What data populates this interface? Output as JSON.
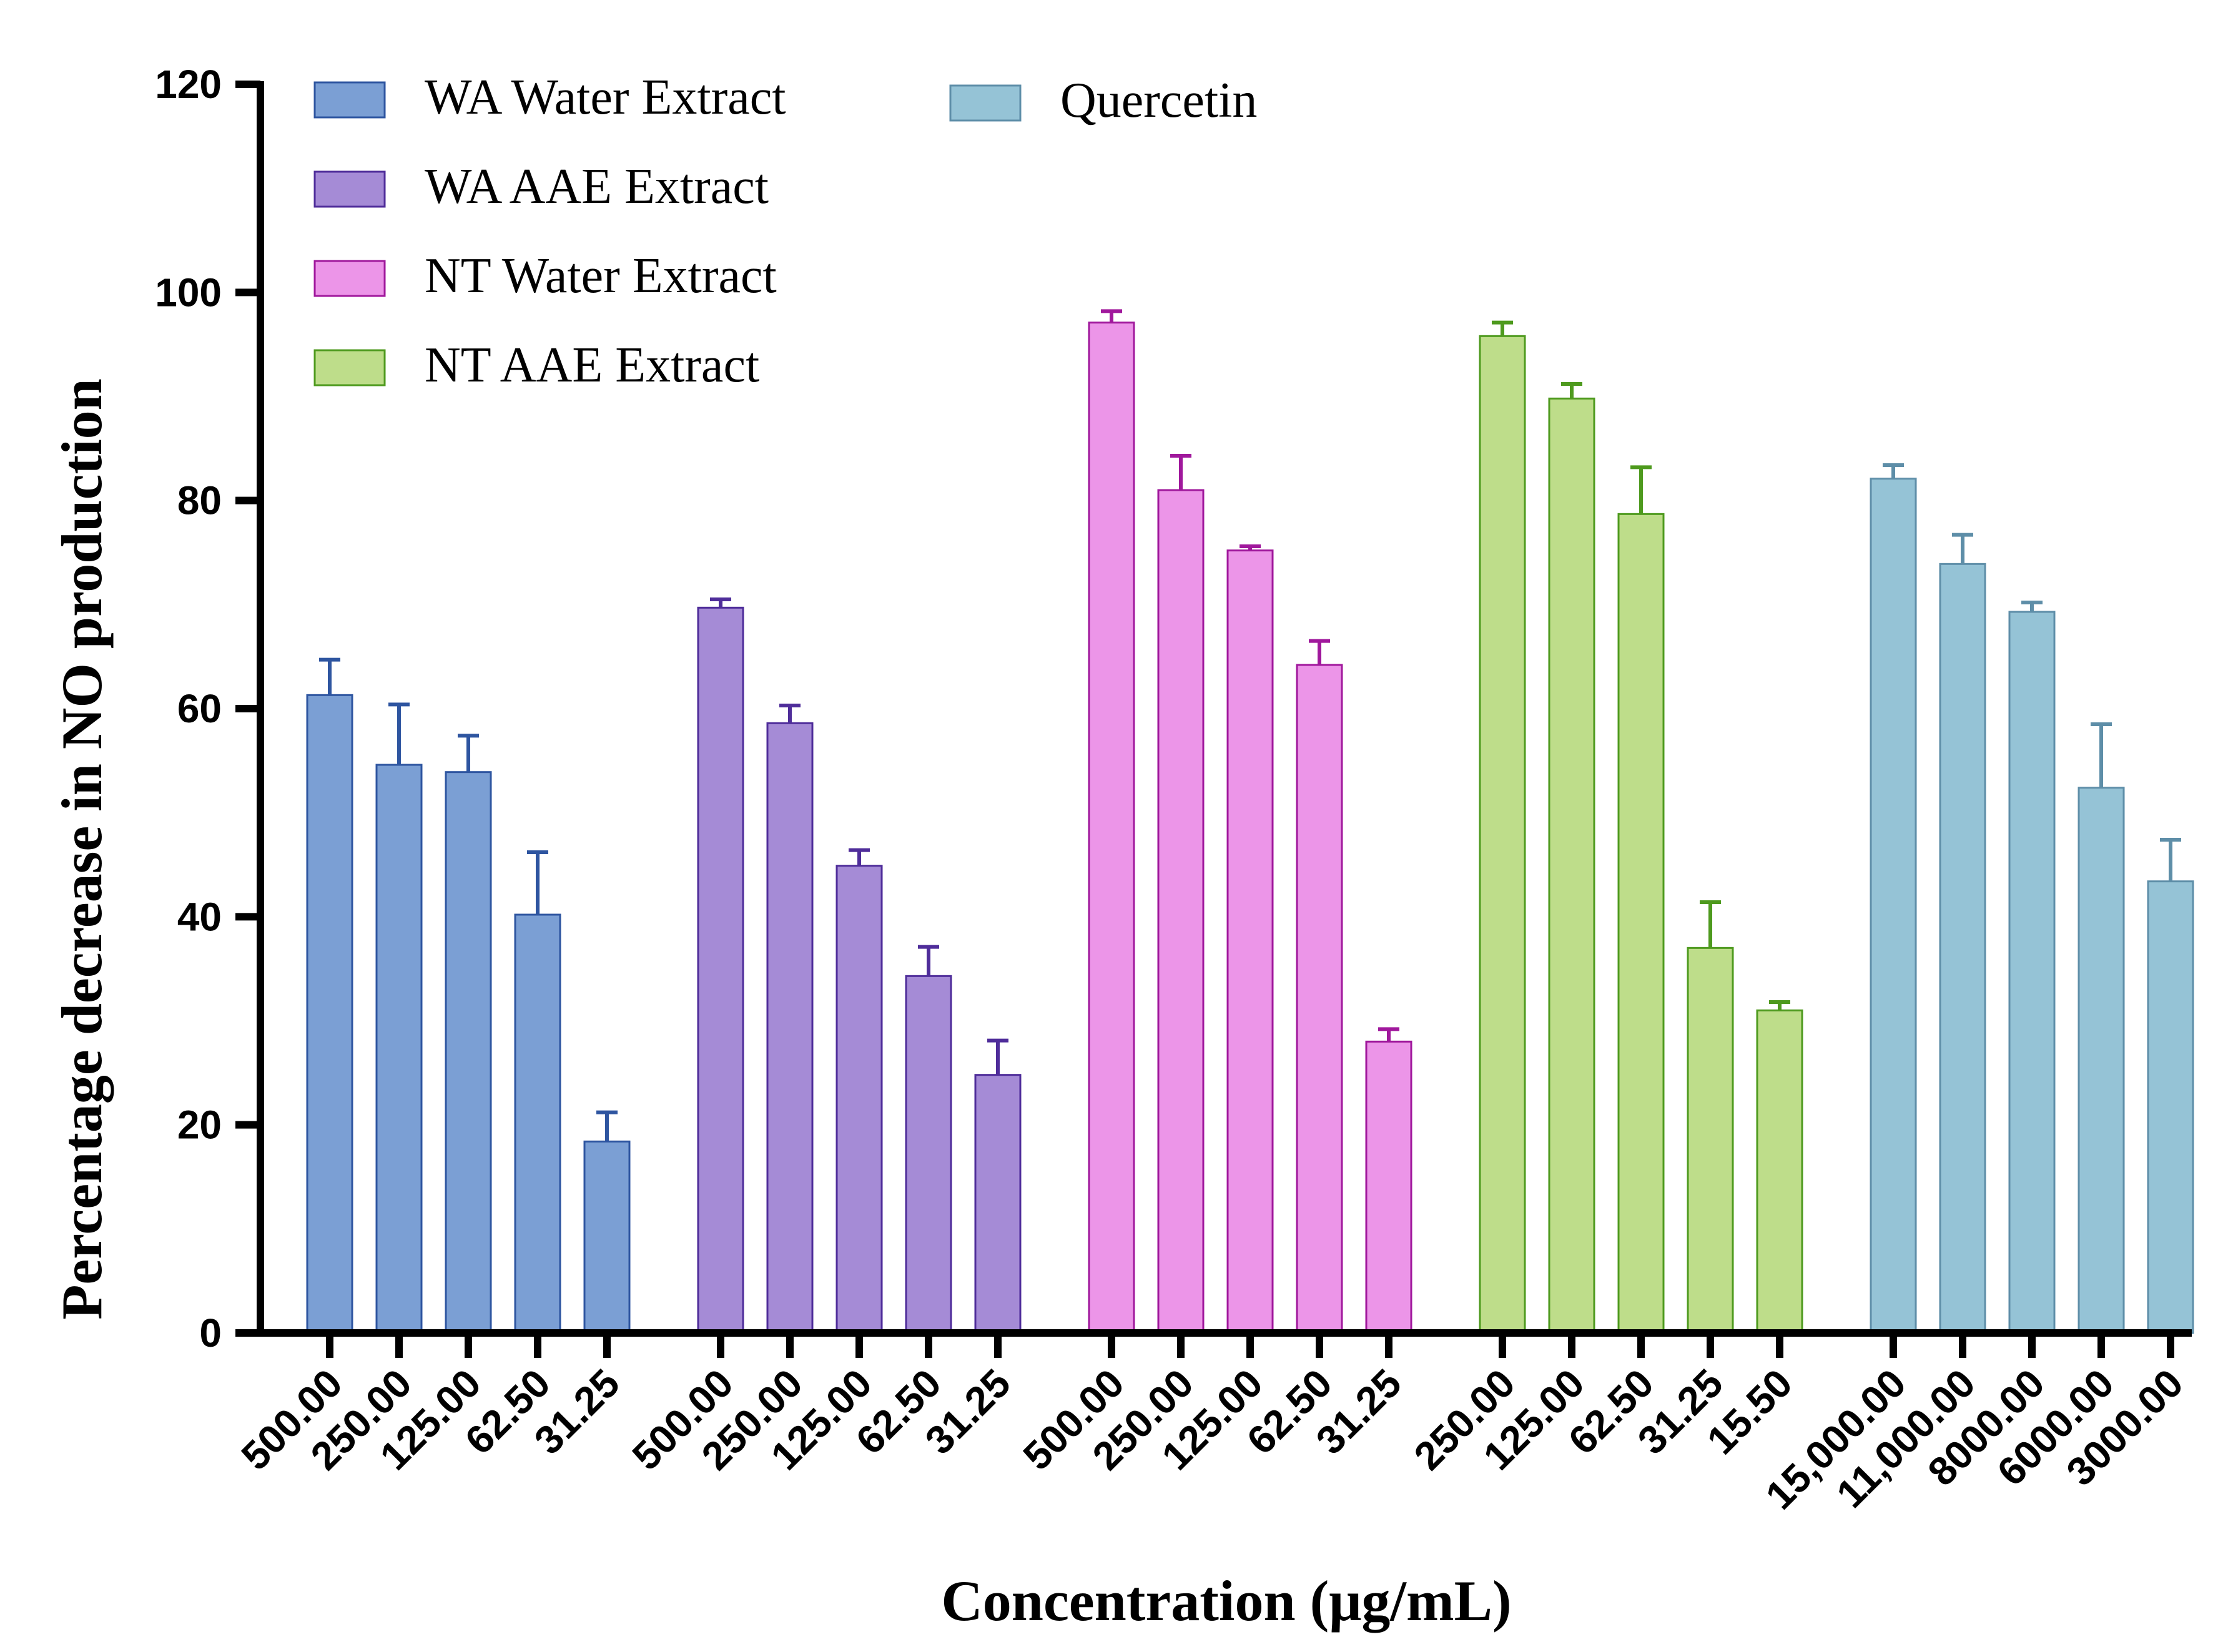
{
  "chart_data": {
    "type": "bar",
    "title": "",
    "xlabel": "Concentration (μg/mL)",
    "ylabel": "Percentage decrease in NO production",
    "ylim": [
      0,
      120
    ],
    "yticks": [
      0,
      20,
      40,
      60,
      80,
      100,
      120
    ],
    "grid": false,
    "legend_position": "top-left",
    "series": [
      {
        "name": "WA Water Extract",
        "color": "#7B9FD4",
        "edge_color": "#2E55A0",
        "categories": [
          "500.00",
          "250.00",
          "125.00",
          "62.50",
          "31.25"
        ],
        "values": [
          61.3,
          54.6,
          53.9,
          40.2,
          18.4
        ],
        "errors": [
          3.4,
          5.8,
          3.5,
          6.0,
          2.8
        ]
      },
      {
        "name": "WA AAE Extract",
        "color": "#A58BD6",
        "edge_color": "#4F2D9A",
        "categories": [
          "500.00",
          "250.00",
          "125.00",
          "62.50",
          "31.25"
        ],
        "values": [
          69.7,
          58.6,
          44.9,
          34.3,
          24.8
        ],
        "errors": [
          0.8,
          1.7,
          1.5,
          2.8,
          3.3
        ]
      },
      {
        "name": "NT Water Extract",
        "color": "#EC95E8",
        "edge_color": "#A0189C",
        "categories": [
          "500.00",
          "250.00",
          "125.00",
          "62.50",
          "31.25"
        ],
        "values": [
          97.1,
          81.0,
          75.2,
          64.2,
          28.0
        ],
        "errors": [
          1.1,
          3.3,
          0.4,
          2.3,
          1.2
        ]
      },
      {
        "name": "NT AAE Extract",
        "color": "#BEDD8A",
        "edge_color": "#4E9A1E",
        "categories": [
          "250.00",
          "125.00",
          "62.50",
          "31.25",
          "15.50"
        ],
        "values": [
          95.8,
          89.8,
          78.7,
          37.0,
          31.0
        ],
        "errors": [
          1.3,
          1.4,
          4.5,
          4.4,
          0.8
        ]
      },
      {
        "name": "Quercetin",
        "color": "#95C3D6",
        "edge_color": "#5E8EA8",
        "categories": [
          "15,000.00",
          "11,000.00",
          "8000.00",
          "6000.00",
          "3000.00"
        ],
        "values": [
          82.1,
          73.9,
          69.3,
          52.4,
          43.4
        ],
        "errors": [
          1.3,
          2.8,
          0.9,
          6.1,
          4.0
        ]
      }
    ]
  }
}
